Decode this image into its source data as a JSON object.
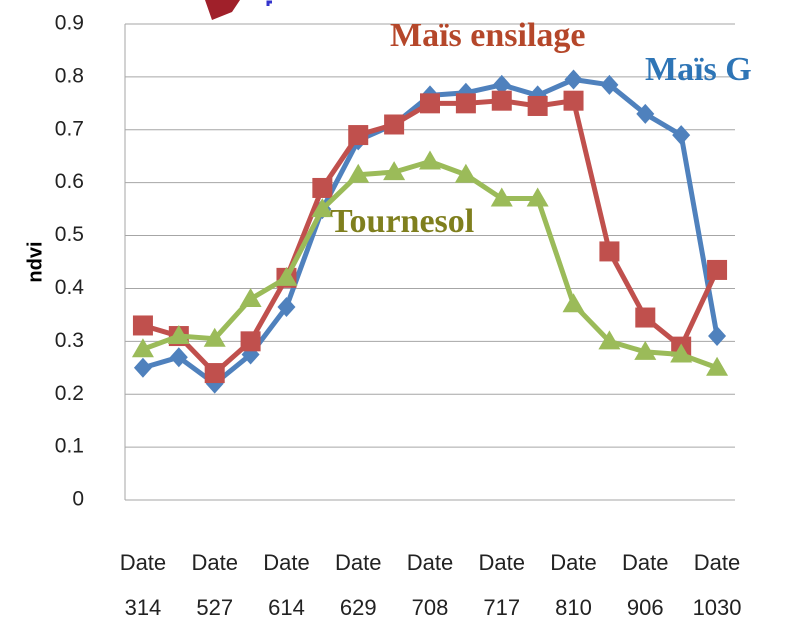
{
  "chart_data": {
    "type": "line",
    "y_label": "ndvi",
    "categories": [
      "Date 314",
      null,
      "Date 527",
      null,
      "Date 614",
      null,
      "Date 629",
      null,
      "Date 708",
      null,
      "Date 717",
      null,
      "Date 810",
      null,
      "Date 906",
      null,
      "Date 1030"
    ],
    "series": [
      {
        "name": "Maïs G",
        "color": "#4f81bd",
        "marker": "diamond",
        "values": [
          0.25,
          0.27,
          0.22,
          0.275,
          0.365,
          0.55,
          0.68,
          0.71,
          0.765,
          0.77,
          0.785,
          0.765,
          0.795,
          0.785,
          0.73,
          0.69,
          0.31
        ]
      },
      {
        "name": "Maïs ensilage",
        "color": "#c0504d",
        "marker": "square",
        "values": [
          0.33,
          0.31,
          0.24,
          0.3,
          0.42,
          0.59,
          0.69,
          0.71,
          0.75,
          0.75,
          0.755,
          0.745,
          0.755,
          0.47,
          0.345,
          0.29,
          0.435
        ]
      },
      {
        "name": "Tournesol",
        "color": "#9bbb59",
        "marker": "triangle",
        "values": [
          0.285,
          0.31,
          0.305,
          0.38,
          0.42,
          0.55,
          0.615,
          0.62,
          0.64,
          0.615,
          0.57,
          0.57,
          0.37,
          0.3,
          0.28,
          0.275,
          0.25
        ]
      }
    ],
    "ylim": [
      0,
      0.9
    ],
    "yticks": [
      0,
      0.1,
      0.2,
      0.3,
      0.4,
      0.5,
      0.6,
      0.7,
      0.8,
      0.9
    ],
    "grid": true
  }
}
